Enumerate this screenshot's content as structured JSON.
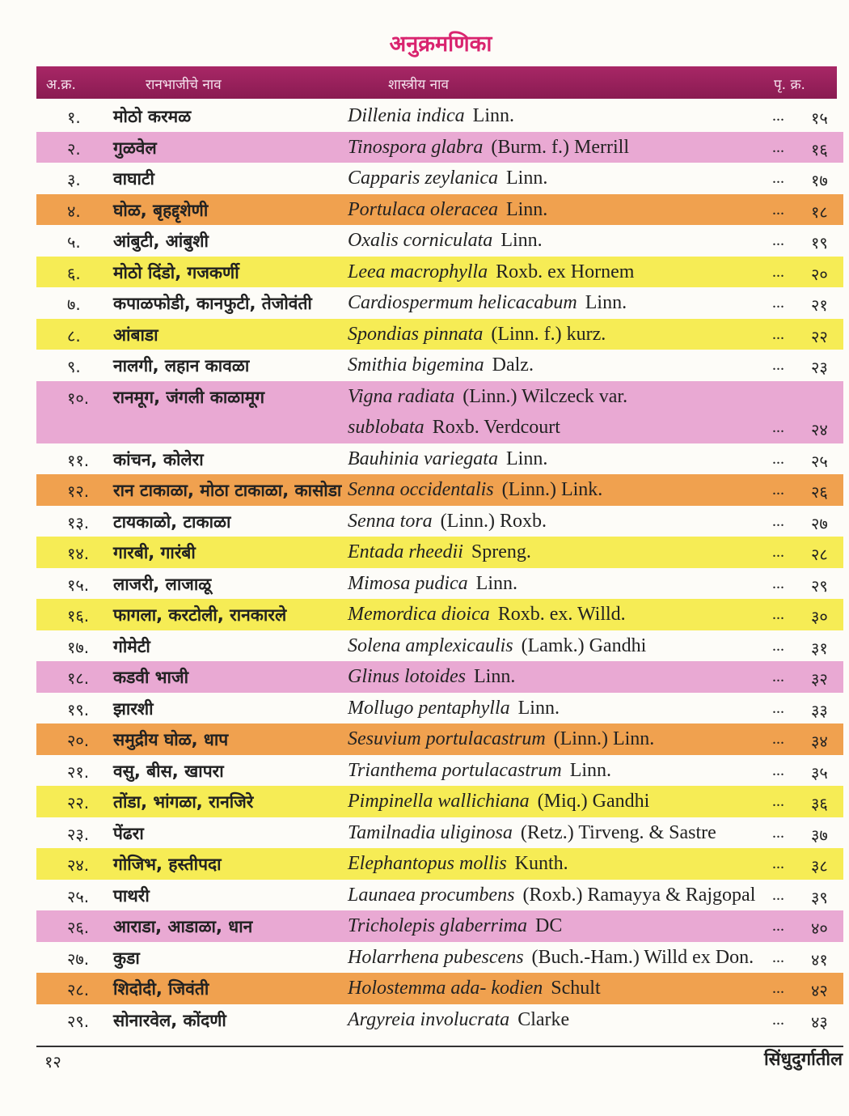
{
  "title": "अनुक्रमणिका",
  "header": {
    "sr": "अ.क्र.",
    "local_name": "रानभाजीचे नाव",
    "scientific_name": "शास्त्रीय नाव",
    "page": "पृ. क्र."
  },
  "colors": {
    "header": "#9a2160",
    "title": "#d9246f",
    "pink": "#e9a9d3",
    "orange": "#f0a14f",
    "yellow": "#f6ec55"
  },
  "rows": [
    {
      "no": "१.",
      "local": "मोठो करमळ",
      "genus": "Dillenia indica",
      "author": "Linn.",
      "page": "१५",
      "band": "white"
    },
    {
      "no": "२.",
      "local": "गुळवेल",
      "genus": "Tinospora glabra",
      "author": "(Burm. f.) Merrill",
      "page": "१६",
      "band": "pink"
    },
    {
      "no": "३.",
      "local": "वाघाटी",
      "genus": "Capparis zeylanica",
      "author": "Linn.",
      "page": "१७",
      "band": "white"
    },
    {
      "no": "४.",
      "local": "घोळ, बृहद्दृशेणी",
      "genus": "Portulaca oleracea",
      "author": "Linn.",
      "page": "१८",
      "band": "orange"
    },
    {
      "no": "५.",
      "local": "आंबुटी, आंबुशी",
      "genus": "Oxalis corniculata",
      "author": "Linn.",
      "page": "१९",
      "band": "white"
    },
    {
      "no": "६.",
      "local": "मोठो दिंडो, गजकर्णी",
      "genus": "Leea macrophylla",
      "author": "Roxb. ex Hornem",
      "page": "२०",
      "band": "yellow"
    },
    {
      "no": "७.",
      "local": "कपाळफोडी, कानफुटी, तेजोवंती",
      "genus": "Cardiospermum helicacabum",
      "author": "Linn.",
      "page": "२१",
      "band": "white"
    },
    {
      "no": "८.",
      "local": "आंबाडा",
      "genus": "Spondias pinnata",
      "author": "(Linn. f.) kurz.",
      "page": "२२",
      "band": "yellow"
    },
    {
      "no": "९.",
      "local": "नालगी, लहान कावळा",
      "genus": "Smithia bigemina",
      "author": "Dalz.",
      "page": "२३",
      "band": "white"
    },
    {
      "no": "१०.",
      "local": "रानमूग, जंगली काळामूग",
      "genus": "Vigna radiata",
      "author": "(Linn.) Wilczeck var.",
      "genus2": "sublobata",
      "author2": "Roxb.  Verdcourt",
      "page": "२४",
      "band": "pink"
    },
    {
      "no": "११.",
      "local": "कांचन, कोलेरा",
      "genus": "Bauhinia variegata",
      "author": "Linn.",
      "page": "२५",
      "band": "white"
    },
    {
      "no": "१२.",
      "local": "रान टाकाळा, मोठा टाकाळा, कासोडा",
      "genus": "Senna occidentalis",
      "author": "(Linn.) Link.",
      "page": "२६",
      "band": "orange"
    },
    {
      "no": "१३.",
      "local": "टायकाळो, टाकाळा",
      "genus": "Senna tora",
      "author": "(Linn.) Roxb.",
      "page": "२७",
      "band": "white"
    },
    {
      "no": "१४.",
      "local": "गारबी, गारंबी",
      "genus": "Entada rheedii",
      "author": "Spreng.",
      "page": "२८",
      "band": "yellow"
    },
    {
      "no": "१५.",
      "local": "लाजरी, लाजाळू",
      "genus": "Mimosa pudica",
      "author": "Linn.",
      "page": "२९",
      "band": "white"
    },
    {
      "no": "१६.",
      "local": "फागला, करटोली, रानकारले",
      "genus": "Memordica dioica",
      "author": "Roxb. ex. Willd.",
      "page": "३०",
      "band": "yellow"
    },
    {
      "no": "१७.",
      "local": "गोमेटी",
      "genus": "Solena amplexicaulis",
      "author": "(Lamk.) Gandhi",
      "page": "३१",
      "band": "white"
    },
    {
      "no": "१८.",
      "local": "कडवी भाजी",
      "genus": "Glinus lotoides",
      "author": "Linn.",
      "page": "३२",
      "band": "pink"
    },
    {
      "no": "१९.",
      "local": "झारशी",
      "genus": "Mollugo pentaphylla",
      "author": "Linn.",
      "page": "३३",
      "band": "white"
    },
    {
      "no": "२०.",
      "local": "समुद्रीय घोळ, धाप",
      "genus": "Sesuvium portulacastrum",
      "author": "(Linn.) Linn.",
      "page": "३४",
      "band": "orange"
    },
    {
      "no": "२१.",
      "local": "वसु, बीस, खापरा",
      "genus": "Trianthema portulacastrum",
      "author": "Linn.",
      "page": "३५",
      "band": "white"
    },
    {
      "no": "२२.",
      "local": "तोंडा, भांगळा, रानजिरे",
      "genus": "Pimpinella wallichiana",
      "author": "(Miq.) Gandhi",
      "page": "३६",
      "band": "yellow"
    },
    {
      "no": "२३.",
      "local": "पेंढरा",
      "genus": "Tamilnadia uliginosa",
      "author": "(Retz.) Tirveng. & Sastre",
      "page": "३७",
      "band": "white"
    },
    {
      "no": "२४.",
      "local": "गोजिभ, हस्तीपदा",
      "genus": "Elephantopus mollis",
      "author": "Kunth.",
      "page": "३८",
      "band": "yellow"
    },
    {
      "no": "२५.",
      "local": "पाथरी",
      "genus": "Launaea procumbens",
      "author": "(Roxb.) Ramayya & Rajgopal",
      "page": "३९",
      "band": "white"
    },
    {
      "no": "२६.",
      "local": "आराडा, आडाळा, धान",
      "genus": "Tricholepis glaberrima",
      "author": "DC",
      "page": "४०",
      "band": "pink"
    },
    {
      "no": "२७.",
      "local": "कुडा",
      "genus": "Holarrhena pubescens",
      "author": "(Buch.-Ham.) Willd ex Don.",
      "page": "४१",
      "band": "white"
    },
    {
      "no": "२८.",
      "local": "शिदोदी, जिवंती",
      "genus": "Holostemma ada- kodien",
      "author": "Schult",
      "page": "४२",
      "band": "orange"
    },
    {
      "no": "२९.",
      "local": "सोनारवेल, कोंदणी",
      "genus": "Argyreia involucrata",
      "author": "Clarke",
      "page": "४३",
      "band": "white"
    }
  ],
  "leader": "...",
  "footer": {
    "page_number": "१२",
    "running_title": "सिंधुदुर्गातील"
  }
}
